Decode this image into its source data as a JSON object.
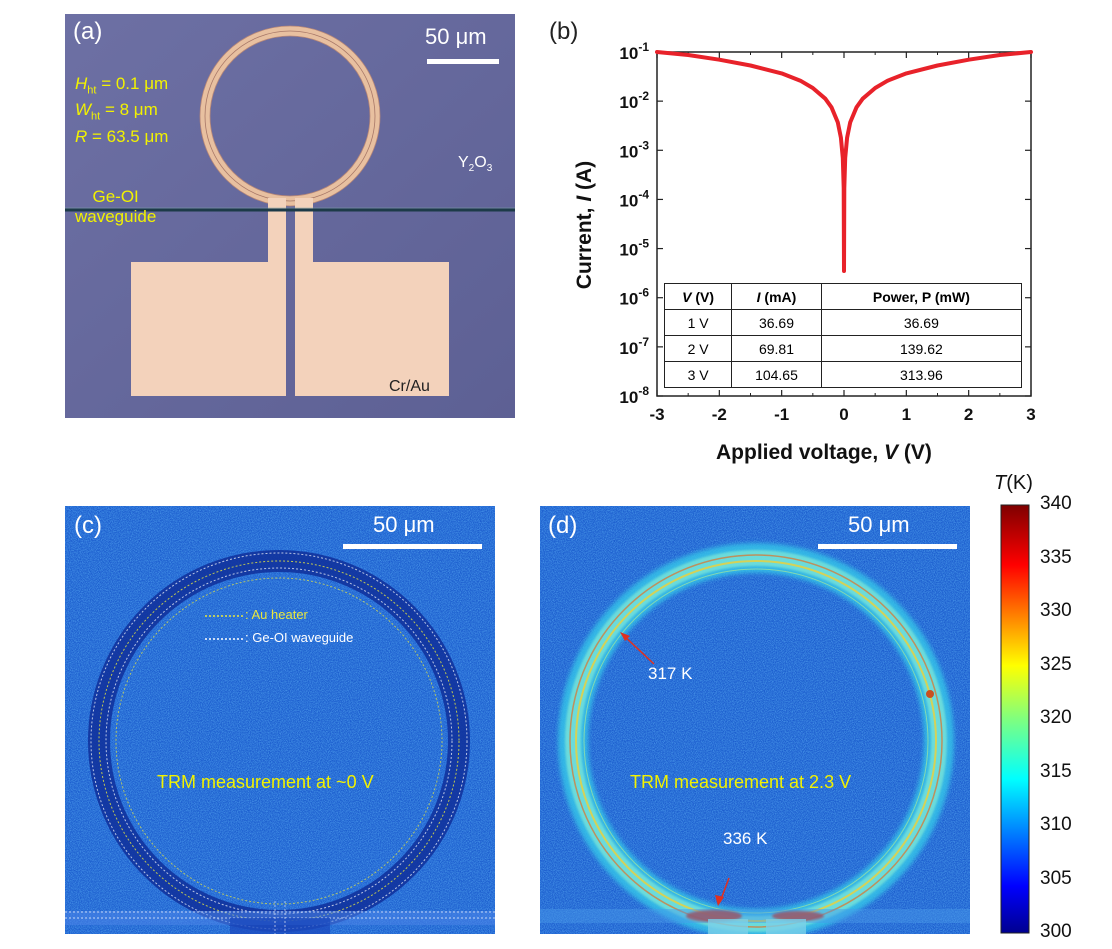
{
  "panels": {
    "a": {
      "label": "(a)",
      "scalebar": "50 μm",
      "params": [
        {
          "sym": "H",
          "sub": "ht",
          "rest": " = 0.1 μm"
        },
        {
          "sym": "W",
          "sub": "ht",
          "rest": " = 8 μm"
        },
        {
          "sym": "R",
          "sub": "",
          "rest": " = 63.5 μm"
        }
      ],
      "waveguide_line1": "Ge-OI",
      "waveguide_line2": "waveguide",
      "substrate_main": "Y",
      "substrate_sub1": "2",
      "substrate_o": "O",
      "substrate_sub2": "3",
      "metal": "Cr/Au"
    },
    "b": {
      "label": "(b)",
      "xlabel_prefix": "Applied voltage, ",
      "xlabel_var": "V",
      "xlabel_unit": " (V)",
      "ylabel_prefix": "Current, ",
      "ylabel_var": "I",
      "ylabel_unit": " (A)"
    },
    "c": {
      "label": "(c)",
      "scalebar": "50 μm",
      "legend_heater": ": Au heater",
      "legend_waveguide": ": Ge-OI waveguide",
      "caption": "TRM measurement at ~0 V"
    },
    "d": {
      "label": "(d)",
      "scalebar": "50 μm",
      "caption": "TRM measurement at 2.3 V",
      "annot_317": "317 K",
      "annot_336": "336 K"
    }
  },
  "colorbar": {
    "title_var": "T",
    "title_unit": "(K)",
    "ticks": [
      "340",
      "335",
      "330",
      "325",
      "320",
      "315",
      "310",
      "305",
      "300"
    ]
  },
  "table": {
    "headers": [
      {
        "var": "V",
        "unit": " (V)"
      },
      {
        "var": "I",
        "unit": " (mA)"
      },
      {
        "var": "Power, P",
        "unit": " (mW)"
      }
    ],
    "rows": [
      [
        "1 V",
        "36.69",
        "36.69"
      ],
      [
        "2 V",
        "69.81",
        "139.62"
      ],
      [
        "3 V",
        "104.65",
        "313.96"
      ]
    ]
  },
  "chart_data": {
    "type": "line",
    "xlabel": "Applied voltage, V (V)",
    "ylabel": "Current, I (A)",
    "xlim": [
      -3,
      3
    ],
    "ylim": [
      1e-08,
      0.1
    ],
    "yscale": "log",
    "x_ticks": [
      "-3",
      "-2",
      "-1",
      "0",
      "1",
      "2",
      "3"
    ],
    "y_ticks": [
      {
        "base": "10",
        "exp": "-1"
      },
      {
        "base": "10",
        "exp": "-2"
      },
      {
        "base": "10",
        "exp": "-3"
      },
      {
        "base": "10",
        "exp": "-4"
      },
      {
        "base": "10",
        "exp": "-5"
      },
      {
        "base": "10",
        "exp": "-6"
      },
      {
        "base": "10",
        "exp": "-7"
      },
      {
        "base": "10",
        "exp": "-8"
      }
    ],
    "series": [
      {
        "color": "#e8222a",
        "x": [
          -3,
          -2.5,
          -2,
          -1.5,
          -1,
          -0.7,
          -0.5,
          -0.3,
          -0.2,
          -0.1,
          -0.05,
          -0.02,
          -0.005,
          0,
          0.005,
          0.02,
          0.05,
          0.1,
          0.2,
          0.3,
          0.5,
          0.7,
          1,
          1.5,
          2,
          2.5,
          3
        ],
        "y": [
          0.1,
          0.087,
          0.0698,
          0.053,
          0.0367,
          0.026,
          0.0185,
          0.0112,
          0.0075,
          0.0037,
          0.0018,
          0.0007,
          0.00017,
          3.5e-06,
          0.00017,
          0.0007,
          0.0018,
          0.0037,
          0.0075,
          0.0112,
          0.0185,
          0.026,
          0.0367,
          0.053,
          0.0698,
          0.087,
          0.1
        ]
      }
    ],
    "grid": false
  }
}
